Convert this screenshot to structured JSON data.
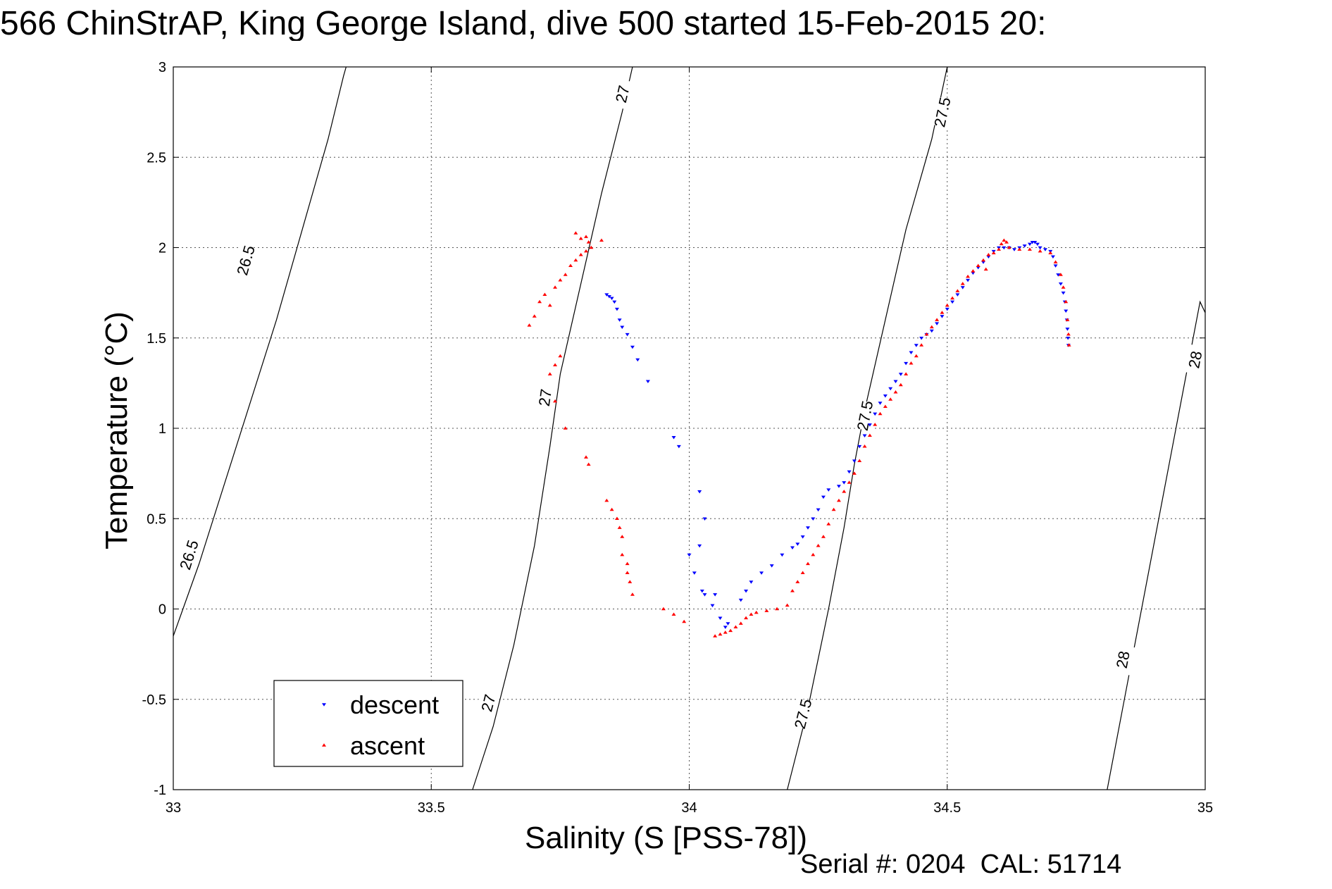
{
  "header": {
    "title": "566 ChinStrAP, King George Island, dive 500 started 15-Feb-2015 20:",
    "footer": "Serial #: 0204  CAL: 51714"
  },
  "chart_data": {
    "type": "scatter",
    "title": "566 ChinStrAP, King George Island, dive 500 started 15-Feb-2015 20:",
    "xlabel": "Salinity (S [PSS-78])",
    "ylabel": "Temperature (°C)",
    "xlim": [
      33,
      35
    ],
    "ylim": [
      -1,
      3
    ],
    "xticks": [
      "33",
      "33.5",
      "34",
      "34.5",
      "35"
    ],
    "yticks": [
      "-1",
      "-0.5",
      "0",
      "0.5",
      "1",
      "1.5",
      "2",
      "2.5",
      "3"
    ],
    "grid": true,
    "legend_position": "bottom-left",
    "series": [
      {
        "name": "descent",
        "color": "#0000ff",
        "marker": "triangle-down",
        "points": [
          [
            33.84,
            1.74
          ],
          [
            33.845,
            1.73
          ],
          [
            33.85,
            1.72
          ],
          [
            33.855,
            1.7
          ],
          [
            33.86,
            1.66
          ],
          [
            33.865,
            1.6
          ],
          [
            33.87,
            1.56
          ],
          [
            33.88,
            1.52
          ],
          [
            33.89,
            1.45
          ],
          [
            33.9,
            1.38
          ],
          [
            33.92,
            1.26
          ],
          [
            33.97,
            0.95
          ],
          [
            33.98,
            0.9
          ],
          [
            34.02,
            0.65
          ],
          [
            34.03,
            0.5
          ],
          [
            34.02,
            0.35
          ],
          [
            34.0,
            0.3
          ],
          [
            34.01,
            0.2
          ],
          [
            34.025,
            0.1
          ],
          [
            34.03,
            0.08
          ],
          [
            34.05,
            0.08
          ],
          [
            34.045,
            0.02
          ],
          [
            34.06,
            -0.05
          ],
          [
            34.07,
            -0.1
          ],
          [
            34.075,
            -0.08
          ],
          [
            34.1,
            0.05
          ],
          [
            34.11,
            0.1
          ],
          [
            34.12,
            0.15
          ],
          [
            34.14,
            0.2
          ],
          [
            34.16,
            0.24
          ],
          [
            34.18,
            0.3
          ],
          [
            34.2,
            0.34
          ],
          [
            34.21,
            0.36
          ],
          [
            34.22,
            0.4
          ],
          [
            34.23,
            0.45
          ],
          [
            34.24,
            0.5
          ],
          [
            34.25,
            0.55
          ],
          [
            34.26,
            0.62
          ],
          [
            34.27,
            0.66
          ],
          [
            34.29,
            0.68
          ],
          [
            34.3,
            0.7
          ],
          [
            34.31,
            0.76
          ],
          [
            34.32,
            0.82
          ],
          [
            34.33,
            0.9
          ],
          [
            34.34,
            0.96
          ],
          [
            34.35,
            1.02
          ],
          [
            34.36,
            1.08
          ],
          [
            34.37,
            1.14
          ],
          [
            34.38,
            1.18
          ],
          [
            34.39,
            1.22
          ],
          [
            34.4,
            1.26
          ],
          [
            34.41,
            1.3
          ],
          [
            34.42,
            1.36
          ],
          [
            34.43,
            1.42
          ],
          [
            34.44,
            1.46
          ],
          [
            34.45,
            1.5
          ],
          [
            34.46,
            1.52
          ],
          [
            34.47,
            1.54
          ],
          [
            34.48,
            1.58
          ],
          [
            34.49,
            1.62
          ],
          [
            34.5,
            1.66
          ],
          [
            34.51,
            1.7
          ],
          [
            34.52,
            1.74
          ],
          [
            34.53,
            1.78
          ],
          [
            34.54,
            1.82
          ],
          [
            34.55,
            1.86
          ],
          [
            34.56,
            1.89
          ],
          [
            34.57,
            1.92
          ],
          [
            34.58,
            1.95
          ],
          [
            34.59,
            1.98
          ],
          [
            34.6,
            2.0
          ],
          [
            34.61,
            2.0
          ],
          [
            34.62,
            2.0
          ],
          [
            34.63,
            1.99
          ],
          [
            34.64,
            2.0
          ],
          [
            34.65,
            2.01
          ],
          [
            34.66,
            2.02
          ],
          [
            34.665,
            2.03
          ],
          [
            34.67,
            2.03
          ],
          [
            34.675,
            2.02
          ],
          [
            34.68,
            2.0
          ],
          [
            34.69,
            1.99
          ],
          [
            34.7,
            1.98
          ],
          [
            34.705,
            1.95
          ],
          [
            34.71,
            1.9
          ],
          [
            34.715,
            1.85
          ],
          [
            34.72,
            1.8
          ],
          [
            34.725,
            1.75
          ],
          [
            34.728,
            1.7
          ],
          [
            34.73,
            1.65
          ],
          [
            34.732,
            1.6
          ],
          [
            34.733,
            1.55
          ],
          [
            34.734,
            1.5
          ],
          [
            34.735,
            1.46
          ]
        ]
      },
      {
        "name": "ascent",
        "color": "#ff0000",
        "marker": "triangle-up",
        "points": [
          [
            33.78,
            2.08
          ],
          [
            33.79,
            2.05
          ],
          [
            33.8,
            2.06
          ],
          [
            33.805,
            2.03
          ],
          [
            33.81,
            2.0
          ],
          [
            33.8,
            1.98
          ],
          [
            33.79,
            1.96
          ],
          [
            33.83,
            2.04
          ],
          [
            33.78,
            1.93
          ],
          [
            33.77,
            1.9
          ],
          [
            33.76,
            1.85
          ],
          [
            33.75,
            1.82
          ],
          [
            33.74,
            1.78
          ],
          [
            33.72,
            1.74
          ],
          [
            33.71,
            1.7
          ],
          [
            33.73,
            1.68
          ],
          [
            33.7,
            1.62
          ],
          [
            33.69,
            1.57
          ],
          [
            33.75,
            1.4
          ],
          [
            33.74,
            1.35
          ],
          [
            33.73,
            1.3
          ],
          [
            33.74,
            1.15
          ],
          [
            33.76,
            1.0
          ],
          [
            33.8,
            0.84
          ],
          [
            33.805,
            0.8
          ],
          [
            33.84,
            0.6
          ],
          [
            33.85,
            0.55
          ],
          [
            33.86,
            0.5
          ],
          [
            33.865,
            0.45
          ],
          [
            33.87,
            0.4
          ],
          [
            33.87,
            0.3
          ],
          [
            33.88,
            0.25
          ],
          [
            33.88,
            0.2
          ],
          [
            33.885,
            0.15
          ],
          [
            33.89,
            0.08
          ],
          [
            33.95,
            0.0
          ],
          [
            33.97,
            -0.03
          ],
          [
            33.99,
            -0.07
          ],
          [
            34.05,
            -0.15
          ],
          [
            34.06,
            -0.14
          ],
          [
            34.07,
            -0.13
          ],
          [
            34.08,
            -0.12
          ],
          [
            34.09,
            -0.1
          ],
          [
            34.1,
            -0.08
          ],
          [
            34.11,
            -0.05
          ],
          [
            34.12,
            -0.03
          ],
          [
            34.13,
            -0.02
          ],
          [
            34.15,
            -0.01
          ],
          [
            34.17,
            0.0
          ],
          [
            34.19,
            0.02
          ],
          [
            34.2,
            0.1
          ],
          [
            34.21,
            0.15
          ],
          [
            34.22,
            0.2
          ],
          [
            34.23,
            0.25
          ],
          [
            34.24,
            0.3
          ],
          [
            34.25,
            0.35
          ],
          [
            34.26,
            0.4
          ],
          [
            34.27,
            0.47
          ],
          [
            34.28,
            0.55
          ],
          [
            34.29,
            0.6
          ],
          [
            34.3,
            0.65
          ],
          [
            34.31,
            0.7
          ],
          [
            34.32,
            0.75
          ],
          [
            34.33,
            0.82
          ],
          [
            34.34,
            0.9
          ],
          [
            34.35,
            0.96
          ],
          [
            34.36,
            1.02
          ],
          [
            34.37,
            1.08
          ],
          [
            34.38,
            1.12
          ],
          [
            34.39,
            1.16
          ],
          [
            34.4,
            1.2
          ],
          [
            34.41,
            1.24
          ],
          [
            34.42,
            1.3
          ],
          [
            34.43,
            1.36
          ],
          [
            34.44,
            1.4
          ],
          [
            34.45,
            1.46
          ],
          [
            34.46,
            1.52
          ],
          [
            34.47,
            1.56
          ],
          [
            34.48,
            1.6
          ],
          [
            34.49,
            1.64
          ],
          [
            34.5,
            1.68
          ],
          [
            34.51,
            1.72
          ],
          [
            34.52,
            1.76
          ],
          [
            34.53,
            1.8
          ],
          [
            34.54,
            1.84
          ],
          [
            34.55,
            1.87
          ],
          [
            34.56,
            1.9
          ],
          [
            34.57,
            1.93
          ],
          [
            34.575,
            1.88
          ],
          [
            34.58,
            1.96
          ],
          [
            34.59,
            1.97
          ],
          [
            34.6,
            1.99
          ],
          [
            34.605,
            2.02
          ],
          [
            34.61,
            2.04
          ],
          [
            34.615,
            2.03
          ],
          [
            34.62,
            2.0
          ],
          [
            34.64,
            1.99
          ],
          [
            34.66,
            1.99
          ],
          [
            34.68,
            1.98
          ],
          [
            34.7,
            1.97
          ],
          [
            34.71,
            1.92
          ],
          [
            34.72,
            1.85
          ],
          [
            34.725,
            1.78
          ],
          [
            34.73,
            1.7
          ],
          [
            34.733,
            1.6
          ],
          [
            34.735,
            1.52
          ],
          [
            34.736,
            1.46
          ]
        ]
      }
    ],
    "density_contours": [
      {
        "label": "26.5",
        "points": [
          [
            33.0,
            -0.15
          ],
          [
            33.05,
            0.25
          ],
          [
            33.1,
            0.7
          ],
          [
            33.15,
            1.15
          ],
          [
            33.2,
            1.6
          ],
          [
            33.25,
            2.1
          ],
          [
            33.3,
            2.6
          ],
          [
            33.33,
            2.95
          ],
          [
            33.335,
            3.0
          ]
        ],
        "label_points": [
          [
            33.14,
            1.93
          ],
          [
            33.03,
            0.3
          ]
        ]
      },
      {
        "label": "27",
        "points": [
          [
            33.58,
            -1.0
          ],
          [
            33.62,
            -0.65
          ],
          [
            33.66,
            -0.2
          ],
          [
            33.7,
            0.35
          ],
          [
            33.73,
            0.9
          ],
          [
            33.75,
            1.3
          ],
          [
            33.79,
            1.8
          ],
          [
            33.83,
            2.3
          ],
          [
            33.87,
            2.75
          ],
          [
            33.89,
            3.0
          ]
        ],
        "label_points": [
          [
            33.87,
            2.85
          ],
          [
            33.72,
            1.17
          ],
          [
            33.61,
            -0.52
          ]
        ]
      },
      {
        "label": "27.5",
        "points": [
          [
            34.19,
            -1.0
          ],
          [
            34.23,
            -0.55
          ],
          [
            34.27,
            0.0
          ],
          [
            34.3,
            0.45
          ],
          [
            34.32,
            0.8
          ],
          [
            34.34,
            1.1
          ],
          [
            34.38,
            1.6
          ],
          [
            34.42,
            2.1
          ],
          [
            34.47,
            2.6
          ],
          [
            34.5,
            3.0
          ]
        ],
        "label_points": [
          [
            34.49,
            2.75
          ],
          [
            34.34,
            1.07
          ],
          [
            34.22,
            -0.58
          ]
        ]
      },
      {
        "label": "28",
        "points": [
          [
            34.81,
            -1.0
          ],
          [
            34.84,
            -0.55
          ],
          [
            34.87,
            -0.1
          ],
          [
            34.9,
            0.35
          ],
          [
            34.93,
            0.8
          ],
          [
            34.96,
            1.25
          ],
          [
            34.99,
            1.7
          ],
          [
            35.0,
            1.64
          ]
        ],
        "label_points": [
          [
            34.98,
            1.38
          ],
          [
            34.84,
            -0.28
          ]
        ]
      }
    ]
  }
}
